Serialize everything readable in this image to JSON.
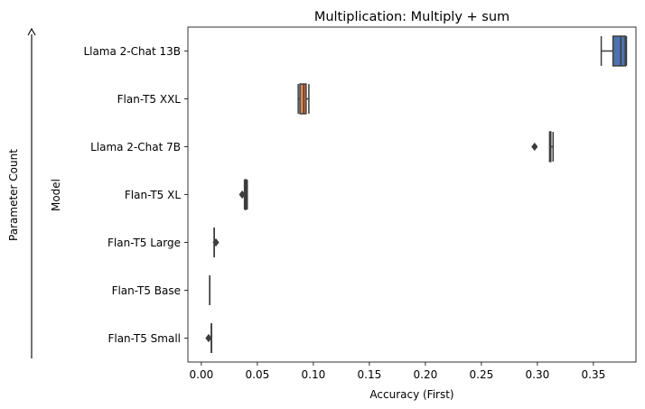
{
  "chart_data": {
    "type": "box",
    "orientation": "horizontal",
    "title": "Multiplication: Multiply + sum",
    "xlabel": "Accuracy (First)",
    "ylabel": "Model",
    "outer_ylabel": "Parameter Count",
    "xlim": [
      -0.012,
      0.388
    ],
    "xticks": [
      0.0,
      0.05,
      0.1,
      0.15,
      0.2,
      0.25,
      0.3,
      0.35
    ],
    "xtick_labels": [
      "0.00",
      "0.05",
      "0.10",
      "0.15",
      "0.20",
      "0.25",
      "0.30",
      "0.35"
    ],
    "grid": false,
    "categories": [
      "Llama 2-Chat 13B",
      "Flan-T5 XXL",
      "Llama 2-Chat 7B",
      "Flan-T5 XL",
      "Flan-T5 Large",
      "Flan-T5 Base",
      "Flan-T5 Small"
    ],
    "boxes": [
      {
        "label": "Llama 2-Chat 13B",
        "color": "#4c72b0",
        "whislo": 0.357,
        "q1": 0.3675,
        "med": 0.3745,
        "q3": 0.3785,
        "whishi": 0.3795,
        "fliers": []
      },
      {
        "label": "Flan-T5 XXL",
        "color": "#dd8452",
        "whislo": 0.0865,
        "q1": 0.088,
        "med": 0.0915,
        "q3": 0.0935,
        "whishi": 0.096,
        "fliers": []
      },
      {
        "label": "Llama 2-Chat 7B",
        "color": "#55a868",
        "whislo": 0.311,
        "q1": 0.311,
        "med": 0.3115,
        "q3": 0.312,
        "whishi": 0.314,
        "fliers": [
          0.2975
        ]
      },
      {
        "label": "Flan-T5 XL",
        "color": "#c44e52",
        "whislo": 0.0385,
        "q1": 0.039,
        "med": 0.0395,
        "q3": 0.04,
        "whishi": 0.041,
        "fliers": [
          0.0365
        ]
      },
      {
        "label": "Flan-T5 Large",
        "color": "#8172b3",
        "whislo": 0.0115,
        "q1": 0.0115,
        "med": 0.0115,
        "q3": 0.0115,
        "whishi": 0.0115,
        "fliers": [
          0.013
        ]
      },
      {
        "label": "Flan-T5 Base",
        "color": "#937860",
        "whislo": 0.0075,
        "q1": 0.0075,
        "med": 0.0075,
        "q3": 0.0075,
        "whishi": 0.0075,
        "fliers": []
      },
      {
        "label": "Flan-T5 Small",
        "color": "#da8bc3",
        "whislo": 0.009,
        "q1": 0.009,
        "med": 0.009,
        "q3": 0.009,
        "whishi": 0.009,
        "fliers": [
          0.0065
        ]
      }
    ]
  }
}
